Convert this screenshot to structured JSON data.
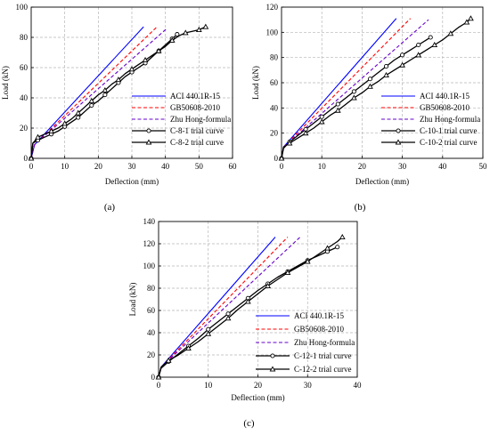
{
  "chart_data": [
    {
      "panel_label": "(a)",
      "type": "line",
      "xlabel": "Deflection (mm)",
      "ylabel": "Load (kN)",
      "xlim": [
        0,
        60
      ],
      "ylim": [
        0,
        100
      ],
      "xticks": [
        "0",
        "10",
        "20",
        "30",
        "40",
        "50",
        "60"
      ],
      "yticks": [
        "0",
        "20",
        "40",
        "60",
        "80",
        "100"
      ],
      "grid": true,
      "legend_position": "lower-right",
      "series": [
        {
          "name": "ACI 440.1R-15",
          "color": "#0000ff",
          "dash": "solid",
          "marker": "none",
          "x": [
            0,
            1,
            33.5
          ],
          "y": [
            0,
            9,
            87
          ]
        },
        {
          "name": "GB50608-2010",
          "color": "#ff0000",
          "dash": "dash",
          "marker": "none",
          "x": [
            0,
            1,
            37.5
          ],
          "y": [
            0,
            9,
            87
          ]
        },
        {
          "name": "Zhu Hong-formula",
          "color": "#6600cc",
          "dash": "dash",
          "marker": "none",
          "x": [
            0,
            1,
            40.5
          ],
          "y": [
            0,
            9,
            86
          ]
        },
        {
          "name": "C-8-1 trial curve",
          "color": "#000000",
          "dash": "solid",
          "marker": "circle",
          "x": [
            0,
            0.5,
            2,
            4,
            6,
            8,
            10,
            12,
            14,
            16,
            18,
            20,
            22,
            24,
            26,
            28,
            30,
            32,
            34,
            36,
            38,
            40,
            42,
            43.5
          ],
          "y": [
            0,
            10,
            12,
            14,
            16,
            18,
            21,
            24,
            27,
            31,
            35,
            38,
            42,
            46,
            50,
            54,
            57,
            60,
            63,
            67,
            71,
            75,
            79,
            82
          ]
        },
        {
          "name": "C-8-2 trial curve",
          "color": "#000000",
          "dash": "solid",
          "marker": "triangle",
          "x": [
            0,
            0.5,
            2,
            4,
            6,
            8,
            10,
            12,
            14,
            16,
            18,
            20,
            22,
            24,
            26,
            28,
            30,
            32,
            34,
            36,
            38,
            40,
            42,
            44,
            46,
            48,
            50,
            52
          ],
          "y": [
            0,
            10,
            14,
            16,
            18,
            20,
            23,
            26,
            30,
            34,
            38,
            42,
            45,
            49,
            52,
            56,
            59,
            62,
            65,
            68,
            71,
            74,
            78,
            81,
            83,
            84,
            85,
            87
          ]
        }
      ]
    },
    {
      "panel_label": "(b)",
      "type": "line",
      "xlabel": "Deflection (mm)",
      "ylabel": "Load (kN)",
      "xlim": [
        0,
        50
      ],
      "ylim": [
        0,
        120
      ],
      "xticks": [
        "0",
        "10",
        "20",
        "30",
        "40",
        "50"
      ],
      "yticks": [
        "0",
        "20",
        "40",
        "60",
        "80",
        "100",
        "120"
      ],
      "grid": true,
      "legend_position": "lower-right",
      "series": [
        {
          "name": "ACI 440.1R-15",
          "color": "#0000ff",
          "dash": "solid",
          "marker": "none",
          "x": [
            0,
            0.5,
            28.5
          ],
          "y": [
            0,
            9,
            111
          ]
        },
        {
          "name": "GB50608-2010",
          "color": "#ff0000",
          "dash": "dash",
          "marker": "none",
          "x": [
            0,
            0.5,
            32
          ],
          "y": [
            0,
            9,
            111
          ]
        },
        {
          "name": "Zhu Hong-formula",
          "color": "#6600cc",
          "dash": "dash",
          "marker": "none",
          "x": [
            0,
            0.5,
            36.5
          ],
          "y": [
            0,
            9,
            110
          ]
        },
        {
          "name": "C-10-1 trial curve",
          "color": "#000000",
          "dash": "solid",
          "marker": "circle",
          "x": [
            0,
            0.5,
            2,
            4,
            6,
            8,
            10,
            12,
            14,
            16,
            18,
            20,
            22,
            24,
            26,
            28,
            30,
            32,
            34,
            36,
            37
          ],
          "y": [
            0,
            8,
            13,
            18,
            23,
            28,
            33,
            38,
            43,
            48,
            53,
            58,
            63,
            68,
            73,
            78,
            82,
            86,
            90,
            94,
            96
          ]
        },
        {
          "name": "C-10-2 trial curve",
          "color": "#000000",
          "dash": "solid",
          "marker": "triangle",
          "x": [
            0,
            0.5,
            2,
            4,
            6,
            8,
            10,
            12,
            14,
            16,
            18,
            20,
            22,
            24,
            26,
            28,
            30,
            32,
            34,
            36,
            38,
            40,
            42,
            44,
            46,
            47
          ],
          "y": [
            0,
            9,
            12,
            16,
            20,
            24,
            29,
            34,
            38,
            43,
            48,
            52,
            57,
            61,
            66,
            70,
            74,
            78,
            82,
            86,
            90,
            94,
            99,
            104,
            108,
            111
          ]
        }
      ]
    },
    {
      "panel_label": "(c)",
      "type": "line",
      "xlabel": "Deflection (mm)",
      "ylabel": "Load (kN)",
      "xlim": [
        0,
        40
      ],
      "ylim": [
        0,
        140
      ],
      "xticks": [
        "0",
        "10",
        "20",
        "30",
        "40"
      ],
      "yticks": [
        "0",
        "20",
        "40",
        "60",
        "80",
        "100",
        "120",
        "140"
      ],
      "grid": true,
      "legend_position": "lower-right",
      "series": [
        {
          "name": "ACI 440.1R-15",
          "color": "#0000ff",
          "dash": "solid",
          "marker": "none",
          "x": [
            0,
            0.5,
            23.5
          ],
          "y": [
            0,
            9,
            126
          ]
        },
        {
          "name": "GB50608-2010",
          "color": "#ff0000",
          "dash": "dash",
          "marker": "none",
          "x": [
            0,
            0.5,
            26
          ],
          "y": [
            0,
            9,
            126
          ]
        },
        {
          "name": "Zhu Hong-formula",
          "color": "#6600cc",
          "dash": "dash",
          "marker": "none",
          "x": [
            0,
            0.5,
            28.5
          ],
          "y": [
            0,
            9,
            126
          ]
        },
        {
          "name": "C-12-1 trial curve",
          "color": "#000000",
          "dash": "solid",
          "marker": "circle",
          "x": [
            0,
            0.5,
            2,
            4,
            6,
            8,
            10,
            12,
            14,
            16,
            18,
            20,
            22,
            24,
            26,
            28,
            30,
            32,
            34,
            36
          ],
          "y": [
            0,
            8,
            14,
            21,
            28,
            35,
            43,
            50,
            57,
            64,
            71,
            78,
            84,
            90,
            95,
            100,
            105,
            109,
            113,
            117
          ]
        },
        {
          "name": "C-12-2 trial curve",
          "color": "#000000",
          "dash": "solid",
          "marker": "triangle",
          "x": [
            0,
            0.5,
            2,
            4,
            6,
            8,
            10,
            12,
            14,
            16,
            18,
            20,
            22,
            24,
            26,
            28,
            30,
            32,
            34,
            36,
            37
          ],
          "y": [
            0,
            9,
            15,
            20,
            26,
            32,
            39,
            46,
            53,
            61,
            68,
            75,
            82,
            88,
            94,
            99,
            104,
            110,
            116,
            122,
            126
          ]
        }
      ]
    }
  ]
}
